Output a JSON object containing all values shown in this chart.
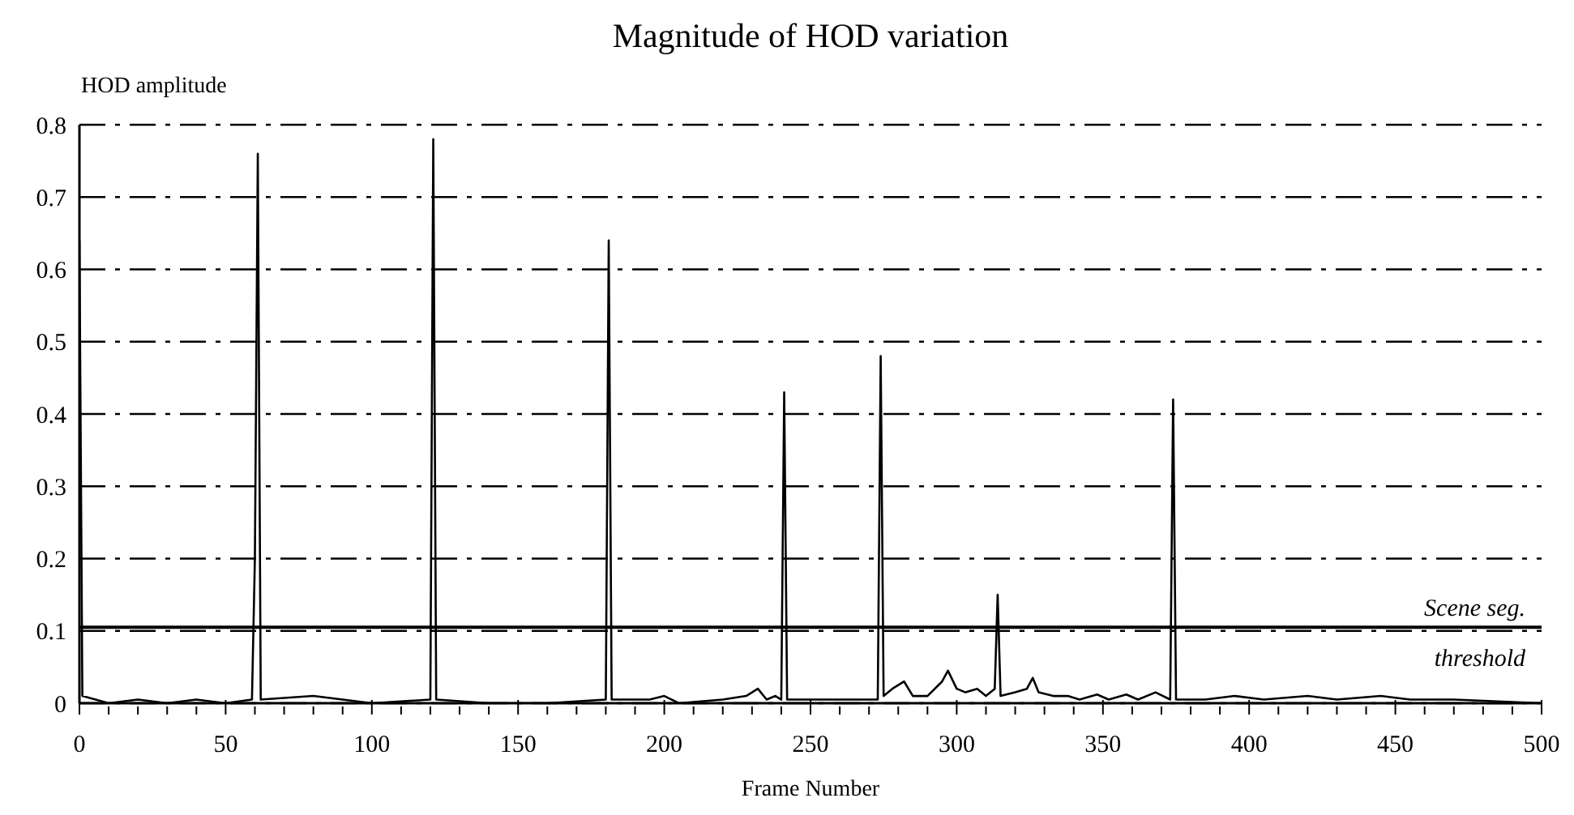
{
  "chart_data": {
    "type": "line",
    "title": "Magnitude of HOD variation",
    "xlabel": "Frame Number",
    "ylabel": "HOD amplitude",
    "x": [
      0,
      1,
      10,
      20,
      30,
      40,
      50,
      59,
      60,
      61,
      62,
      80,
      100,
      120,
      121,
      122,
      140,
      160,
      180,
      181,
      182,
      195,
      200,
      205,
      220,
      228,
      232,
      235,
      238,
      240,
      241,
      242,
      255,
      270,
      273,
      274,
      275,
      278,
      282,
      285,
      290,
      295,
      297,
      300,
      303,
      307,
      310,
      313,
      314,
      315,
      320,
      324,
      326,
      328,
      333,
      338,
      342,
      348,
      352,
      358,
      362,
      368,
      373,
      374,
      375,
      385,
      395,
      405,
      420,
      430,
      445,
      455,
      470,
      500
    ],
    "series": [
      {
        "color": "#000000",
        "values": [
          0.64,
          0.01,
          0,
          0.005,
          0,
          0.005,
          0,
          0.005,
          0.2,
          0.76,
          0.005,
          0.01,
          0,
          0.005,
          0.78,
          0.005,
          0,
          0,
          0.005,
          0.64,
          0.005,
          0.005,
          0.01,
          0,
          0.005,
          0.01,
          0.02,
          0.005,
          0.01,
          0.005,
          0.43,
          0.005,
          0.005,
          0.005,
          0.005,
          0.48,
          0.01,
          0.02,
          0.03,
          0.01,
          0.01,
          0.03,
          0.045,
          0.02,
          0.015,
          0.02,
          0.01,
          0.02,
          0.15,
          0.01,
          0.015,
          0.02,
          0.035,
          0.015,
          0.01,
          0.01,
          0.005,
          0.012,
          0.005,
          0.012,
          0.005,
          0.015,
          0.005,
          0.42,
          0.005,
          0.005,
          0.01,
          0.005,
          0.01,
          0.005,
          0.01,
          0.005,
          0.005,
          0
        ]
      }
    ],
    "xlim": [
      0,
      500
    ],
    "ylim": [
      0,
      0.8
    ],
    "xticks": [
      0,
      {
        "value": 10,
        "label": null
      },
      {
        "value": 20,
        "label": null
      },
      {
        "value": 30,
        "label": null
      },
      {
        "value": 40,
        "label": null
      },
      50,
      {
        "value": 60,
        "label": null
      },
      {
        "value": 70,
        "label": null
      },
      {
        "value": 80,
        "label": null
      },
      {
        "value": 90,
        "label": null
      },
      100,
      {
        "value": 110,
        "label": null
      },
      {
        "value": 120,
        "label": null
      },
      {
        "value": 130,
        "label": null
      },
      {
        "value": 140,
        "label": null
      },
      150,
      {
        "value": 160,
        "label": null
      },
      {
        "value": 170,
        "label": null
      },
      {
        "value": 180,
        "label": null
      },
      {
        "value": 190,
        "label": null
      },
      200,
      {
        "value": 210,
        "label": null
      },
      {
        "value": 220,
        "label": null
      },
      {
        "value": 230,
        "label": null
      },
      {
        "value": 240,
        "label": null
      },
      250,
      {
        "value": 260,
        "label": null
      },
      {
        "value": 270,
        "label": null
      },
      {
        "value": 280,
        "label": null
      },
      {
        "value": 290,
        "label": null
      },
      300,
      {
        "value": 310,
        "label": null
      },
      {
        "value": 320,
        "label": null
      },
      {
        "value": 330,
        "label": null
      },
      {
        "value": 340,
        "label": null
      },
      350,
      {
        "value": 360,
        "label": null
      },
      {
        "value": 370,
        "label": null
      },
      {
        "value": 380,
        "label": null
      },
      {
        "value": 390,
        "label": null
      },
      400,
      {
        "value": 410,
        "label": null
      },
      {
        "value": 420,
        "label": null
      },
      {
        "value": 430,
        "label": null
      },
      {
        "value": 440,
        "label": null
      },
      450,
      {
        "value": 460,
        "label": null
      },
      {
        "value": 470,
        "label": null
      },
      {
        "value": 480,
        "label": null
      },
      {
        "value": 490,
        "label": null
      },
      500
    ],
    "yticks": [
      0,
      0.1,
      0.2,
      0.3,
      0.4,
      0.5,
      0.6,
      0.7,
      0.8
    ],
    "grid": "y",
    "line_style": "solid",
    "marker": "none",
    "ref_lines": [
      {
        "axis": "y",
        "value": 0.105,
        "label": "Scene seg. threshold",
        "color": "#000000",
        "line_style": "solid"
      }
    ]
  }
}
